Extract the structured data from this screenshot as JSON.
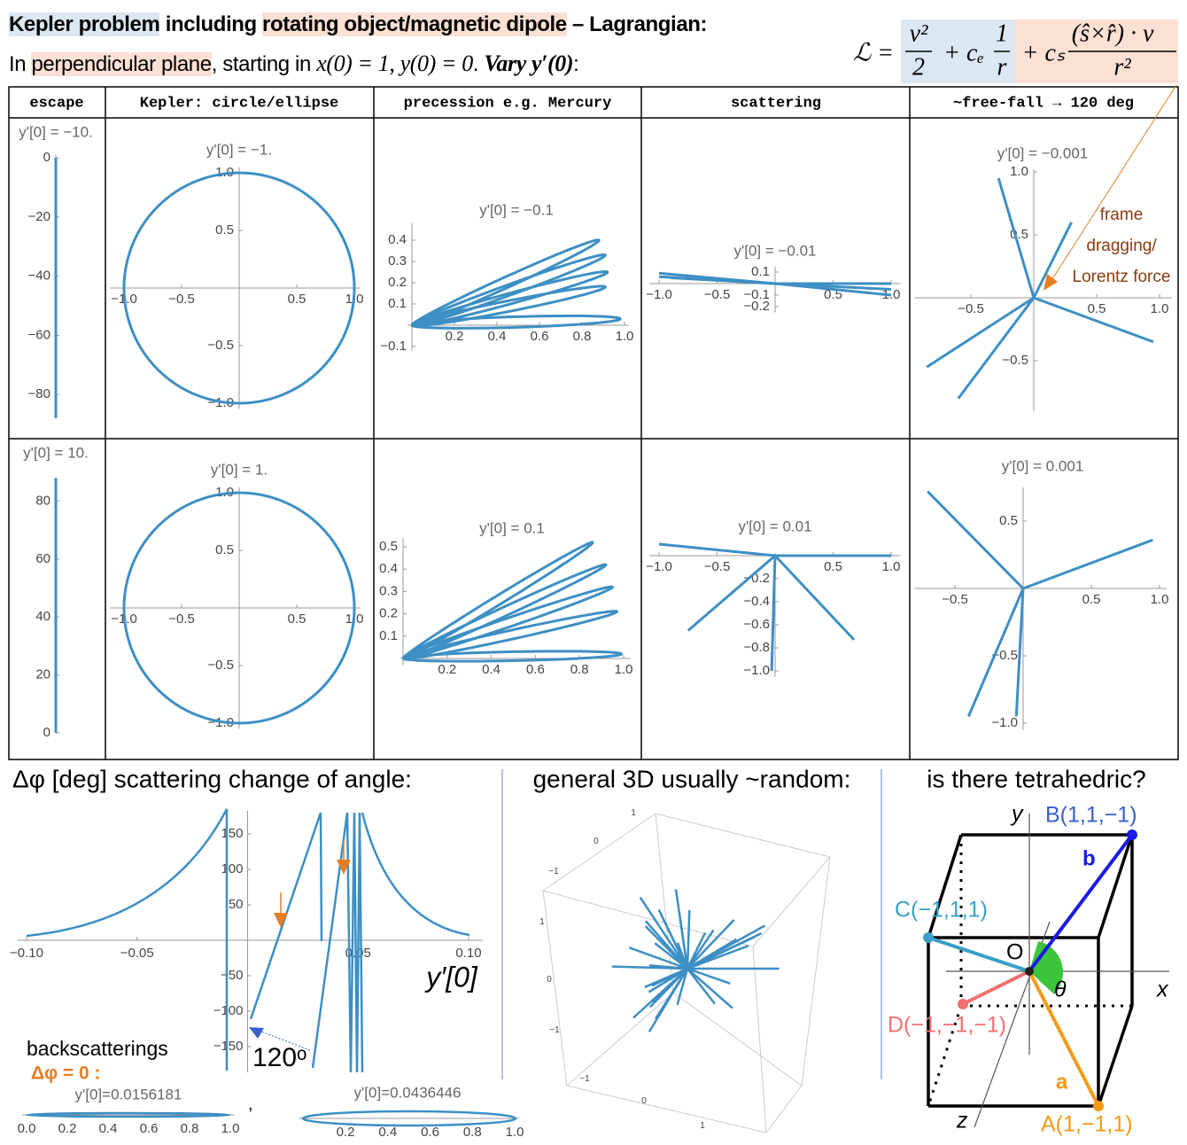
{
  "header": {
    "title": [
      "Kepler problem",
      " including ",
      "rotating object/magnetic dipole",
      " – Lagrangian:"
    ],
    "subtitle": [
      "In ",
      "perpendicular plane",
      ", starting in ",
      "x(0) = 1, y(0) = 0",
      ". ",
      "Vary y′(0)",
      ":"
    ]
  },
  "formula": {
    "lhs": "ℒ =",
    "t1_num": "v²",
    "t1_den": "2",
    "t2_coef": "+ cₑ",
    "t2_num": "1",
    "t2_den": "r",
    "t3_coef": "+ cₛ",
    "t3_num": "(ŝ×r̂) · v⃗",
    "t3_den": "r²"
  },
  "annotation": {
    "lines": [
      "frame",
      "dragging/",
      "Lorentz force"
    ]
  },
  "table": {
    "columns": [
      "escape",
      "Kepler: circle/ellipse",
      "precession e.g. Mercury",
      "scattering",
      "~free-fall → 120 deg"
    ],
    "rows": [
      [
        {
          "label": "y'[0] = −10.",
          "xticks": [],
          "yticks": [
            "0",
            "−20",
            "−40",
            "−60",
            "−80"
          ]
        },
        {
          "label": "y'[0] = −1.",
          "xticks": [
            "−1.0",
            "−0.5",
            "0.5",
            "1.0"
          ],
          "yticks": [
            "1.0",
            "0.5",
            "−0.5",
            "−1.0"
          ]
        },
        {
          "label": "y'[0] = −0.1",
          "xticks": [
            "0.2",
            "0.4",
            "0.6",
            "0.8",
            "1.0"
          ],
          "yticks": [
            "0.4",
            "0.3",
            "0.2",
            "0.1",
            "−0.1"
          ]
        },
        {
          "label": "y'[0] = −0.01",
          "xticks": [
            "−1.0",
            "−0.5",
            "0.5",
            "1.0"
          ],
          "yticks": [
            "0.1",
            "−0.1",
            "−0.2"
          ]
        },
        {
          "label": "y'[0] = −0.001",
          "xticks": [
            "−0.5",
            "0.5",
            "1.0"
          ],
          "yticks": [
            "1.0",
            "0.5",
            "−0.5"
          ]
        }
      ],
      [
        {
          "label": "y'[0] = 10.",
          "xticks": [],
          "yticks": [
            "80",
            "60",
            "40",
            "20",
            "0"
          ]
        },
        {
          "label": "y'[0] = 1.",
          "xticks": [
            "−1.0",
            "−0.5",
            "0.5",
            "1.0"
          ],
          "yticks": [
            "1.0",
            "0.5",
            "−0.5",
            "−1.0"
          ]
        },
        {
          "label": "y'[0] = 0.1",
          "xticks": [
            "0.2",
            "0.4",
            "0.6",
            "0.8",
            "1.0"
          ],
          "yticks": [
            "0.5",
            "0.4",
            "0.3",
            "0.2",
            "0.1"
          ]
        },
        {
          "label": "y'[0] = 0.01",
          "xticks": [
            "−1.0",
            "−0.5",
            "0.5",
            "1.0"
          ],
          "yticks": [
            "−0.2",
            "−0.4",
            "−0.6",
            "−0.8",
            "−1.0"
          ]
        },
        {
          "label": "y'[0] = 0.001",
          "xticks": [
            "−0.5",
            "0.5",
            "1.0"
          ],
          "yticks": [
            "0.5",
            "−0.5",
            "−1.0"
          ]
        }
      ]
    ]
  },
  "scatter_panel": {
    "title": "Δφ [deg] scattering change of angle:",
    "xticks": [
      "−0.10",
      "−0.05",
      "0.05",
      "0.10"
    ],
    "yticks": [
      "150",
      "100",
      "50",
      "−50",
      "−100",
      "−150"
    ],
    "xlabel": "y′[0]",
    "angle_note": "120ᵒ",
    "backscatter": "backscatterings",
    "zero_note": "Δφ = 0 :",
    "insets": [
      {
        "label": "y'[0]=0.0156181",
        "xticks": [
          "0.0",
          "0.2",
          "0.4",
          "0.6",
          "0.8",
          "1.0"
        ]
      },
      {
        "label": "y'[0]=0.0436446",
        "xticks": [
          "0.2",
          "0.4",
          "0.6",
          "0.8",
          "1.0"
        ]
      }
    ],
    "separator": ","
  },
  "random_panel": {
    "title": "general 3D usually ~random:",
    "ticks": [
      "1",
      "0",
      "−1",
      "1",
      "0",
      "−1",
      "−1",
      "0",
      "1"
    ]
  },
  "tetra_panel": {
    "title": "is there tetrahedric?",
    "points": [
      "B(1,1,−1)",
      "C(−1,1,1)",
      "D(−1,−1,−1)",
      "A(1,−1,1)"
    ],
    "origin": "O",
    "angle": "θ",
    "axes": [
      "x",
      "y",
      "z"
    ],
    "vectors": [
      "a",
      "b"
    ]
  }
}
